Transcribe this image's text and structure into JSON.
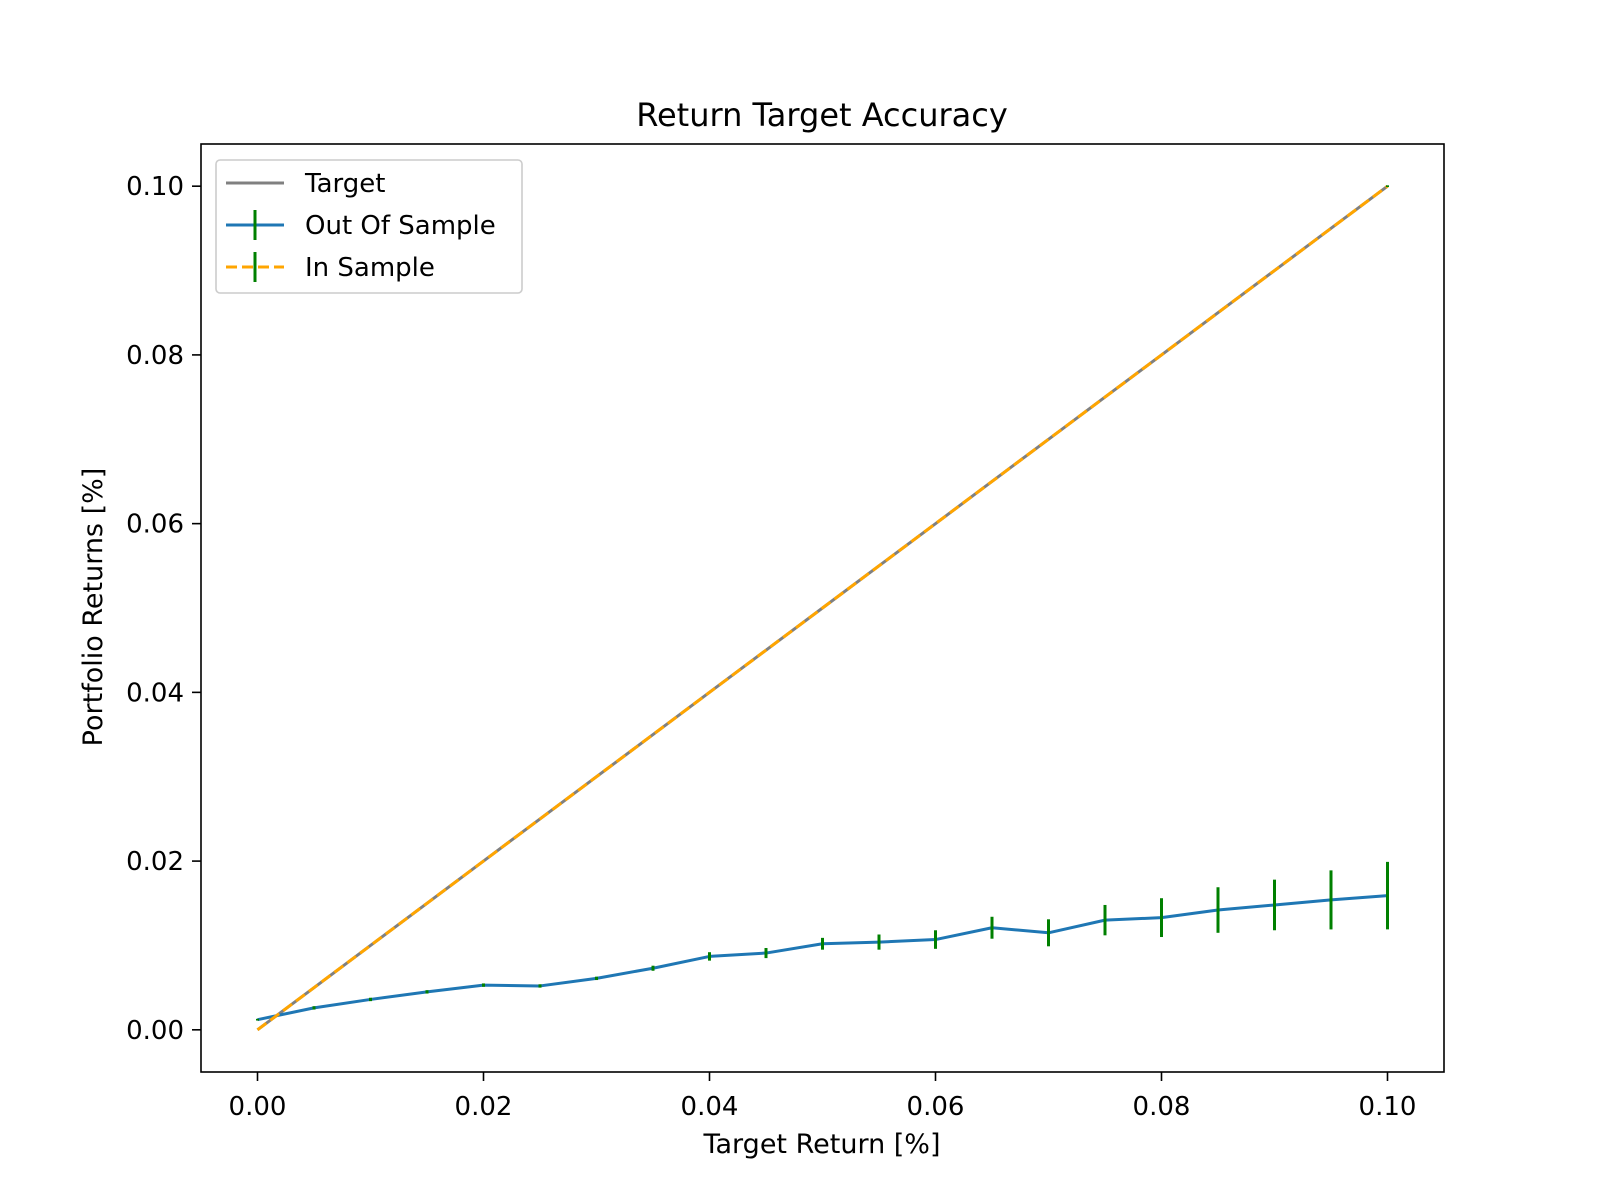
{
  "chart_data": {
    "type": "line",
    "title": "Return Target Accuracy",
    "xlabel": "Target Return [%]",
    "ylabel": "Portfolio Returns [%]",
    "xlim": [
      -0.005,
      0.105
    ],
    "ylim": [
      -0.005,
      0.105
    ],
    "xticks": [
      0.0,
      0.02,
      0.04,
      0.06,
      0.08,
      0.1
    ],
    "yticks": [
      0.0,
      0.02,
      0.04,
      0.06,
      0.08,
      0.1
    ],
    "xtick_labels": [
      "0.00",
      "0.02",
      "0.04",
      "0.06",
      "0.08",
      "0.10"
    ],
    "ytick_labels": [
      "0.00",
      "0.02",
      "0.04",
      "0.06",
      "0.08",
      "0.10"
    ],
    "grid": false,
    "legend_position": "top-left",
    "x": [
      0.0,
      0.005,
      0.01,
      0.015,
      0.02,
      0.025,
      0.03,
      0.035,
      0.04,
      0.045,
      0.05,
      0.055,
      0.06,
      0.065,
      0.07,
      0.075,
      0.08,
      0.085,
      0.09,
      0.095,
      0.1
    ],
    "series": [
      {
        "name": "Target",
        "style": "solid",
        "color": "#808080",
        "values": [
          0.0,
          0.005,
          0.01,
          0.015,
          0.02,
          0.025,
          0.03,
          0.035,
          0.04,
          0.045,
          0.05,
          0.055,
          0.06,
          0.065,
          0.07,
          0.075,
          0.08,
          0.085,
          0.09,
          0.095,
          0.1
        ]
      },
      {
        "name": "Out Of Sample",
        "style": "solid",
        "color": "#1f77b4",
        "error_color": "#008000",
        "values": [
          0.0012,
          0.0026,
          0.0036,
          0.0045,
          0.0053,
          0.0052,
          0.0061,
          0.0073,
          0.0087,
          0.0091,
          0.0102,
          0.0104,
          0.0107,
          0.0121,
          0.0115,
          0.013,
          0.0133,
          0.0142,
          0.0148,
          0.0154,
          0.0159
        ],
        "errors": [
          0.0001,
          0.0002,
          0.0002,
          0.0002,
          0.0002,
          0.0002,
          0.0002,
          0.0003,
          0.0005,
          0.0006,
          0.0007,
          0.0009,
          0.0011,
          0.0013,
          0.0016,
          0.0018,
          0.0023,
          0.0027,
          0.003,
          0.0035,
          0.004
        ]
      },
      {
        "name": "In Sample",
        "style": "dashed",
        "color": "#ffa500",
        "error_color": "#008000",
        "values": [
          0.0,
          0.005,
          0.01,
          0.015,
          0.02,
          0.025,
          0.03,
          0.035,
          0.04,
          0.045,
          0.05,
          0.055,
          0.06,
          0.065,
          0.07,
          0.075,
          0.08,
          0.085,
          0.09,
          0.095,
          0.1
        ],
        "errors": [
          0.0,
          0.0,
          0.0,
          0.0,
          0.0,
          0.0,
          0.0,
          0.0,
          0.0,
          0.0,
          0.0,
          0.0,
          0.0,
          0.0,
          0.0,
          0.0,
          0.0,
          0.0,
          0.0,
          0.0,
          0.0001
        ]
      }
    ]
  }
}
